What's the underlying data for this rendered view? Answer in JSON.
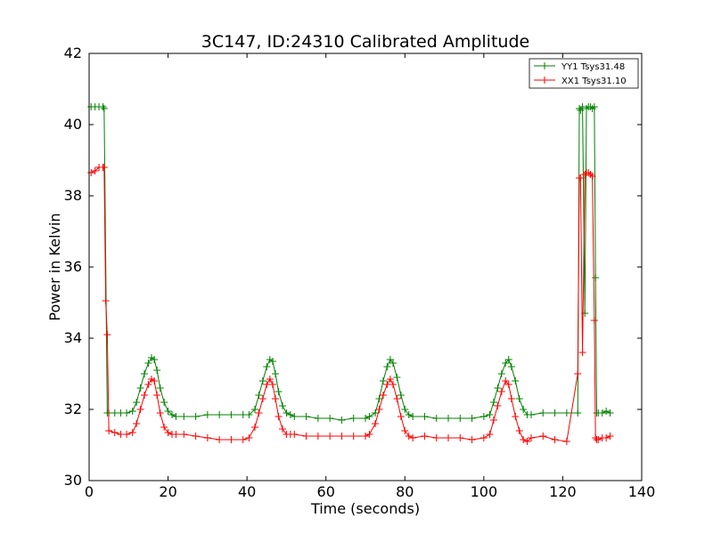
{
  "chart_data": {
    "type": "line",
    "title": "3C147, ID:24310 Calibrated Amplitude",
    "xlabel": "Time (seconds)",
    "ylabel": "Power in Kelvin",
    "xlim": [
      0,
      140
    ],
    "ylim": [
      30,
      42
    ],
    "xticks": [
      "0",
      "20",
      "40",
      "60",
      "80",
      "100",
      "120",
      "140"
    ],
    "yticks": [
      "30",
      "32",
      "34",
      "36",
      "38",
      "40",
      "42"
    ],
    "grid": false,
    "legend_position": "top-right",
    "marker": "plus",
    "series": [
      {
        "name": "YY1 Tsys31.48",
        "color": "#008000",
        "x": [
          0.5,
          1.5,
          2.5,
          3.5,
          3.8,
          4.6,
          5.0,
          6.5,
          8.0,
          9.5,
          11.0,
          12.0,
          13.0,
          14.0,
          15.0,
          15.8,
          16.5,
          17.2,
          18.0,
          19.0,
          20.0,
          21.0,
          22.0,
          24.0,
          27.0,
          30.0,
          33.0,
          36.0,
          39.0,
          40.5,
          42.0,
          43.0,
          44.0,
          45.0,
          45.8,
          46.5,
          47.2,
          48.0,
          49.0,
          50.0,
          51.0,
          52.0,
          55.0,
          58.0,
          61.0,
          64.0,
          67.0,
          70.0,
          71.0,
          72.5,
          73.5,
          74.5,
          75.5,
          76.3,
          77.0,
          78.0,
          79.0,
          80.0,
          81.0,
          82.0,
          85.0,
          88.0,
          91.0,
          94.0,
          97.0,
          100.0,
          101.5,
          102.5,
          103.5,
          104.5,
          105.5,
          106.3,
          107.0,
          108.0,
          109.0,
          110.0,
          111.0,
          112.0,
          115.0,
          118.0,
          121.0,
          123.8,
          124.2,
          124.5,
          125.0,
          125.6,
          126.0,
          126.5,
          127.0,
          127.5,
          128.0,
          128.3,
          128.6,
          129.0,
          130.0,
          131.0,
          132.0
        ],
        "values": [
          40.5,
          40.5,
          40.5,
          40.5,
          40.45,
          31.9,
          31.9,
          31.9,
          31.9,
          31.9,
          31.95,
          32.2,
          32.6,
          33.0,
          33.3,
          33.45,
          33.4,
          33.1,
          32.6,
          32.2,
          31.95,
          31.85,
          31.8,
          31.8,
          31.8,
          31.85,
          31.85,
          31.85,
          31.85,
          31.85,
          32.0,
          32.4,
          32.8,
          33.2,
          33.4,
          33.35,
          33.0,
          32.5,
          32.1,
          31.9,
          31.85,
          31.8,
          31.8,
          31.75,
          31.75,
          31.7,
          31.75,
          31.75,
          31.8,
          31.9,
          32.3,
          32.8,
          33.2,
          33.4,
          33.3,
          32.9,
          32.4,
          32.0,
          31.85,
          31.8,
          31.8,
          31.75,
          31.75,
          31.75,
          31.75,
          31.8,
          31.85,
          32.2,
          32.6,
          33.0,
          33.3,
          33.4,
          33.2,
          32.8,
          32.3,
          32.0,
          31.85,
          31.85,
          31.9,
          31.9,
          31.9,
          31.9,
          40.45,
          40.4,
          40.5,
          34.7,
          40.45,
          40.5,
          40.5,
          40.45,
          40.5,
          35.7,
          31.9,
          31.9,
          31.9,
          31.95,
          31.9
        ]
      },
      {
        "name": "XX1 Tsys31.10",
        "color": "#ff0000",
        "x": [
          0.5,
          1.5,
          2.5,
          3.5,
          3.8,
          4.2,
          4.6,
          5.0,
          6.5,
          8.0,
          9.5,
          11.0,
          12.0,
          13.0,
          14.0,
          15.0,
          15.8,
          16.5,
          17.2,
          18.0,
          19.0,
          20.0,
          21.0,
          22.0,
          24.0,
          27.0,
          30.0,
          33.0,
          36.0,
          39.0,
          40.5,
          42.0,
          43.0,
          44.0,
          45.0,
          45.8,
          46.5,
          47.2,
          48.0,
          49.0,
          50.0,
          51.0,
          52.0,
          55.0,
          58.0,
          61.0,
          64.0,
          67.0,
          70.0,
          71.0,
          72.5,
          73.5,
          74.5,
          75.5,
          76.3,
          77.0,
          78.0,
          79.0,
          80.0,
          81.0,
          82.0,
          85.0,
          88.0,
          91.0,
          94.0,
          97.0,
          100.0,
          101.5,
          102.5,
          103.5,
          104.5,
          105.5,
          106.3,
          107.0,
          108.0,
          109.0,
          110.0,
          111.0,
          112.0,
          115.0,
          118.0,
          121.0,
          123.8,
          124.2,
          124.5,
          125.0,
          125.6,
          126.0,
          126.5,
          127.0,
          127.5,
          128.0,
          128.3,
          128.6,
          129.0,
          130.0,
          131.0,
          132.0
        ],
        "values": [
          38.65,
          38.7,
          38.8,
          38.8,
          38.8,
          35.05,
          34.1,
          31.4,
          31.35,
          31.3,
          31.3,
          31.35,
          31.6,
          32.0,
          32.4,
          32.7,
          32.85,
          32.8,
          32.4,
          31.9,
          31.5,
          31.35,
          31.3,
          31.3,
          31.3,
          31.25,
          31.2,
          31.15,
          31.15,
          31.15,
          31.2,
          31.5,
          31.9,
          32.3,
          32.7,
          32.85,
          32.7,
          32.3,
          31.8,
          31.45,
          31.3,
          31.3,
          31.3,
          31.25,
          31.25,
          31.25,
          31.25,
          31.25,
          31.25,
          31.3,
          31.6,
          32.0,
          32.4,
          32.7,
          32.85,
          32.7,
          32.3,
          31.8,
          31.4,
          31.25,
          31.2,
          31.25,
          31.2,
          31.2,
          31.2,
          31.15,
          31.2,
          31.3,
          31.7,
          32.1,
          32.5,
          32.8,
          32.7,
          32.3,
          31.8,
          31.4,
          31.15,
          31.1,
          31.2,
          31.25,
          31.15,
          31.1,
          33.0,
          38.5,
          38.5,
          33.6,
          38.6,
          38.65,
          38.65,
          38.6,
          38.55,
          34.5,
          31.2,
          31.15,
          31.15,
          31.2,
          31.2,
          31.25
        ]
      }
    ]
  }
}
